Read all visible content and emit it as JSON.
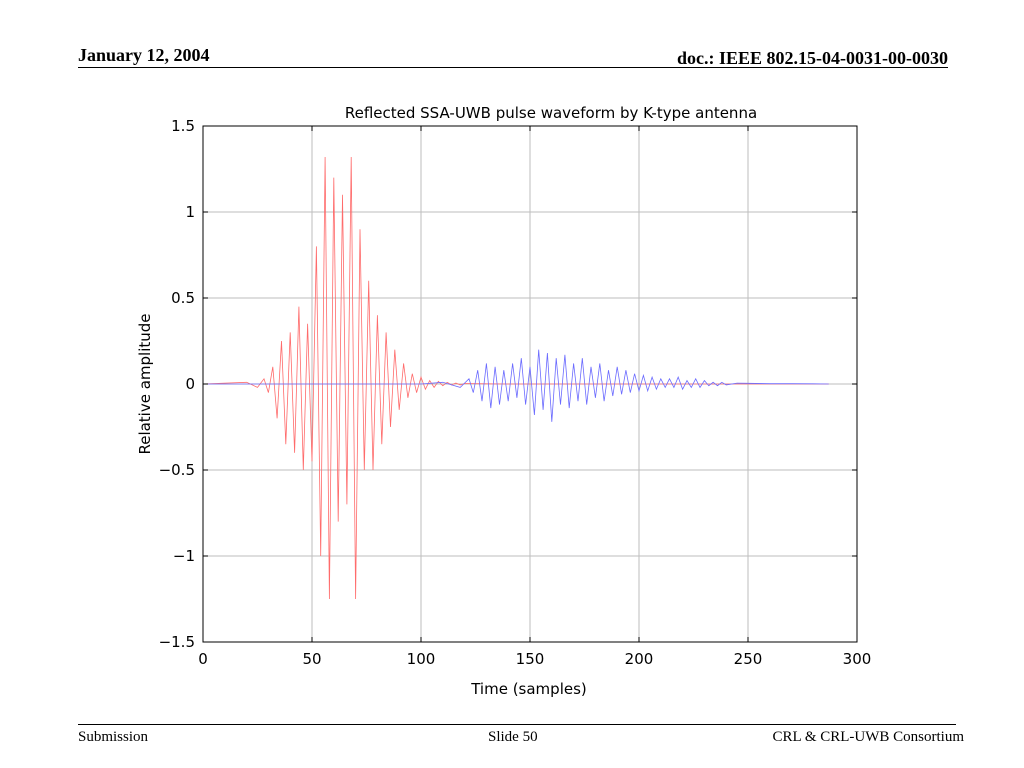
{
  "header": {
    "date": "January 12, 2004",
    "doc": "doc.: IEEE 802.15-04-0031-00-0030"
  },
  "footer": {
    "left": "Submission",
    "center": "Slide 50",
    "right": "CRL & CRL-UWB Consortium"
  },
  "chart_data": {
    "type": "line",
    "title": "Reflected SSA-UWB pulse waveform by K-type antenna",
    "xlabel": "Time (samples)",
    "ylabel": "Relative amplitude",
    "xlim": [
      0,
      300
    ],
    "ylim": [
      -1.5,
      1.5
    ],
    "xticks": [
      0,
      50,
      100,
      150,
      200,
      250,
      300
    ],
    "xtick_labels": [
      "0",
      "50",
      "100",
      "150",
      "200",
      "250",
      "300"
    ],
    "yticks": [
      1.5,
      1,
      0.5,
      0,
      -0.5,
      -1,
      -1.5
    ],
    "ytick_labels": [
      "1.5",
      "1",
      "0.5",
      "0",
      "−0.5",
      "−1",
      "−1.5"
    ],
    "grid": true,
    "series": [
      {
        "color": "#ff6b6b",
        "x": [
          0,
          10,
          20,
          25,
          28,
          30,
          32,
          34,
          36,
          38,
          40,
          42,
          44,
          46,
          48,
          50,
          52,
          54,
          56,
          58,
          60,
          62,
          64,
          66,
          68,
          70,
          72,
          74,
          76,
          78,
          80,
          82,
          84,
          86,
          88,
          90,
          92,
          94,
          96,
          98,
          100,
          102,
          104,
          106,
          108,
          110,
          112,
          114,
          116,
          118,
          120,
          125,
          130,
          140,
          150,
          200,
          287
        ],
        "y": [
          0,
          0.005,
          0.01,
          -0.02,
          0.03,
          -0.05,
          0.1,
          -0.2,
          0.25,
          -0.35,
          0.3,
          -0.4,
          0.45,
          -0.5,
          0.35,
          -0.45,
          0.8,
          -1.0,
          1.32,
          -1.25,
          1.2,
          -0.8,
          1.1,
          -0.7,
          1.32,
          -1.25,
          0.9,
          -0.5,
          0.6,
          -0.5,
          0.4,
          -0.35,
          0.3,
          -0.25,
          0.2,
          -0.15,
          0.12,
          -0.08,
          0.06,
          -0.05,
          0.04,
          -0.03,
          0.02,
          -0.02,
          0.015,
          -0.01,
          0.01,
          -0.005,
          0.005,
          -0.005,
          0.003,
          0.002,
          0.001,
          0,
          0,
          0,
          0
        ]
      },
      {
        "color": "#6b6bff",
        "x": [
          0,
          50,
          100,
          110,
          118,
          122,
          124,
          126,
          128,
          130,
          132,
          134,
          136,
          138,
          140,
          142,
          144,
          146,
          148,
          150,
          152,
          154,
          156,
          158,
          160,
          162,
          164,
          166,
          168,
          170,
          172,
          174,
          176,
          178,
          180,
          182,
          184,
          186,
          188,
          190,
          192,
          194,
          196,
          198,
          200,
          202,
          204,
          206,
          208,
          210,
          212,
          214,
          216,
          218,
          220,
          222,
          224,
          226,
          228,
          230,
          232,
          234,
          236,
          238,
          240,
          245,
          250,
          260,
          270,
          280,
          287
        ],
        "y": [
          0,
          0,
          0,
          0.01,
          -0.02,
          0.03,
          -0.05,
          0.08,
          -0.1,
          0.12,
          -0.14,
          0.1,
          -0.12,
          0.08,
          -0.1,
          0.12,
          -0.08,
          0.15,
          -0.12,
          0.1,
          -0.18,
          0.2,
          -0.15,
          0.18,
          -0.22,
          0.15,
          -0.12,
          0.17,
          -0.14,
          0.12,
          -0.1,
          0.15,
          -0.12,
          0.1,
          -0.08,
          0.12,
          -0.1,
          0.08,
          -0.07,
          0.1,
          -0.06,
          0.08,
          -0.05,
          0.06,
          -0.04,
          0.05,
          -0.04,
          0.04,
          -0.03,
          0.03,
          -0.02,
          0.03,
          -0.02,
          0.04,
          -0.03,
          0.02,
          -0.02,
          0.03,
          -0.02,
          0.02,
          -0.01,
          0.01,
          -0.01,
          0.01,
          -0.005,
          0.005,
          0.004,
          0.002,
          0.002,
          0.001,
          0
        ]
      }
    ]
  }
}
